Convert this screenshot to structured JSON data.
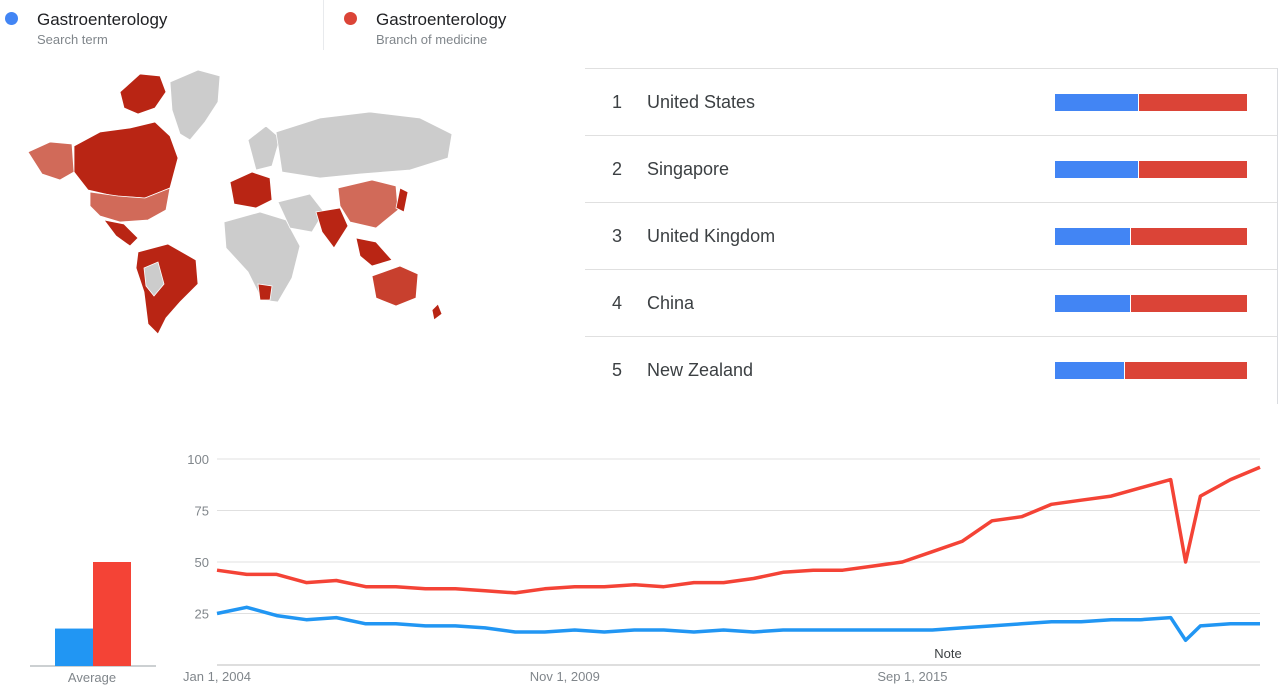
{
  "legend": [
    {
      "term": "Gastroenterology",
      "type": "Search term",
      "color": "#4285f4"
    },
    {
      "term": "Gastroenterology",
      "type": "Branch of medicine",
      "color": "#db4437"
    }
  ],
  "regions": [
    {
      "rank": "1",
      "name": "United States",
      "share": [
        0.43,
        0.57
      ]
    },
    {
      "rank": "2",
      "name": "Singapore",
      "share": [
        0.43,
        0.57
      ]
    },
    {
      "rank": "3",
      "name": "United Kingdom",
      "share": [
        0.39,
        0.61
      ]
    },
    {
      "rank": "4",
      "name": "China",
      "share": [
        0.39,
        0.61
      ]
    },
    {
      "rank": "5",
      "name": "New Zealand",
      "share": [
        0.36,
        0.64
      ]
    }
  ],
  "average_label": "Average",
  "note_label": "Note",
  "colors": {
    "search_term": "#4285f4",
    "branch": "#db4437",
    "avg_blue": "#2196f3",
    "avg_red": "#f44336",
    "map_grey": "#cccccc"
  },
  "chart_data": [
    {
      "type": "bar",
      "categories": [
        "Average"
      ],
      "series": [
        {
          "name": "Gastroenterology",
          "values": [
            18
          ]
        },
        {
          "name": "Gastroenterology",
          "values": [
            50
          ]
        }
      ],
      "ylim": [
        0,
        100
      ]
    },
    {
      "type": "line",
      "x": [
        "2004-01",
        "2004-07",
        "2005-01",
        "2005-07",
        "2006-01",
        "2006-07",
        "2007-01",
        "2007-07",
        "2008-01",
        "2008-07",
        "2009-01",
        "2009-07",
        "2010-01",
        "2010-07",
        "2011-01",
        "2011-07",
        "2012-01",
        "2012-07",
        "2013-01",
        "2013-07",
        "2014-01",
        "2014-07",
        "2015-01",
        "2015-07",
        "2016-01",
        "2016-07",
        "2017-01",
        "2017-07",
        "2018-01",
        "2018-07",
        "2019-01",
        "2019-07",
        "2020-01",
        "2020-04",
        "2020-07",
        "2021-01",
        "2021-07"
      ],
      "series": [
        {
          "name": "Gastroenterology",
          "values": [
            25,
            28,
            24,
            22,
            23,
            20,
            20,
            19,
            19,
            18,
            16,
            16,
            17,
            16,
            17,
            17,
            16,
            17,
            16,
            17,
            17,
            17,
            17,
            17,
            17,
            18,
            19,
            20,
            21,
            21,
            22,
            22,
            23,
            12,
            19,
            20,
            20
          ]
        },
        {
          "name": "Gastroenterology",
          "values": [
            46,
            44,
            44,
            40,
            41,
            38,
            38,
            37,
            37,
            36,
            35,
            37,
            38,
            38,
            39,
            38,
            40,
            40,
            42,
            45,
            46,
            46,
            48,
            50,
            55,
            60,
            70,
            72,
            78,
            80,
            82,
            86,
            90,
            50,
            82,
            90,
            96
          ]
        }
      ],
      "ylim": [
        0,
        100
      ],
      "yticks": [
        25,
        50,
        75,
        100
      ],
      "xtick_labels": [
        "Jan 1, 2004",
        "Nov 1, 2009",
        "Sep 1, 2015"
      ],
      "annotations": [
        "Note"
      ],
      "grid": true
    }
  ]
}
